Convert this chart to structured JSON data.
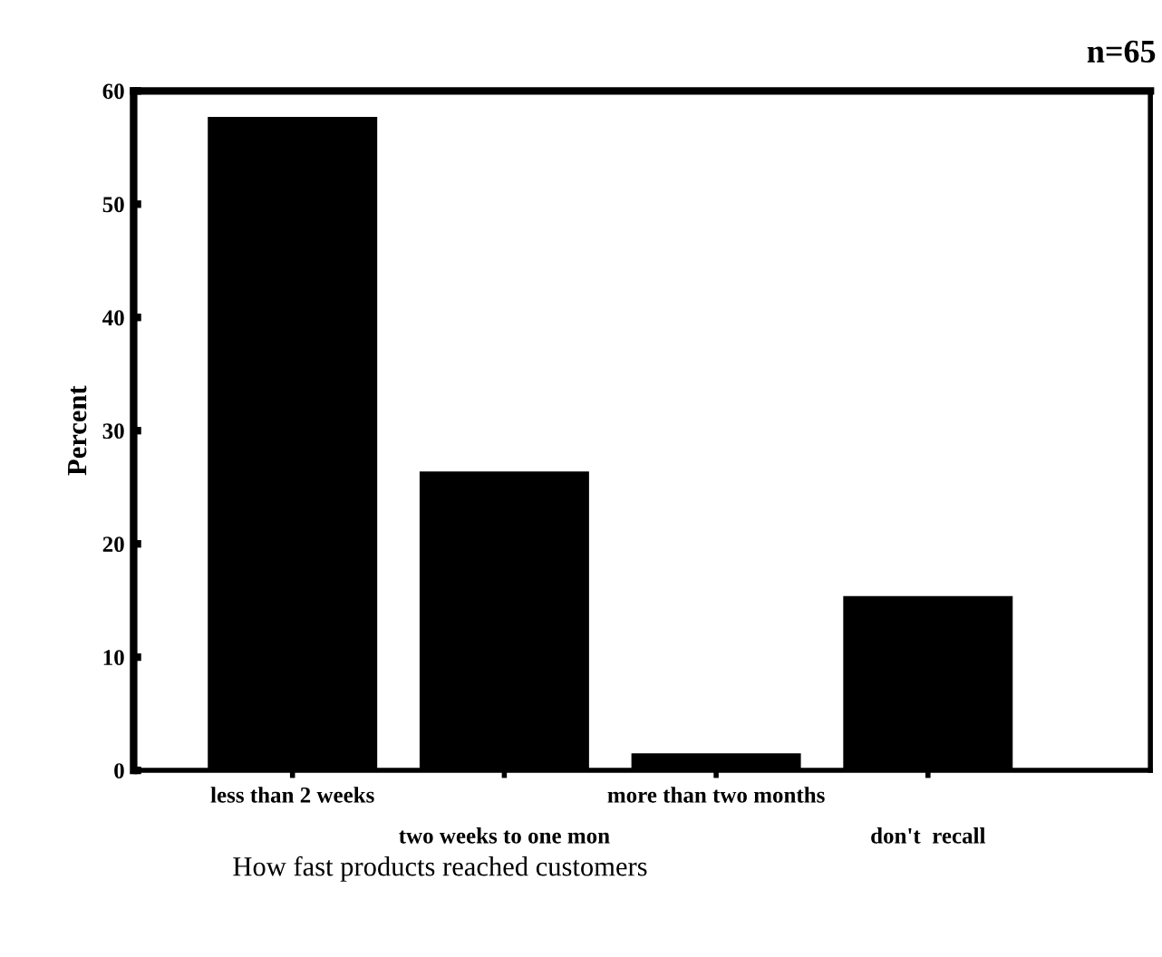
{
  "chart_data": {
    "type": "bar",
    "title": "How fast products reached customers",
    "ylabel": "Percent",
    "annotations": [
      "n=65"
    ],
    "categories": [
      "less than 2 weeks",
      "two weeks to one mon",
      "more than two months",
      "don't  recall"
    ],
    "values": [
      57.7,
      26.4,
      1.5,
      15.4
    ],
    "color": "#000000",
    "ylim": [
      0,
      60
    ],
    "yticks": [
      0,
      10,
      20,
      30,
      40,
      50,
      60
    ],
    "grid": false,
    "legend": false
  }
}
